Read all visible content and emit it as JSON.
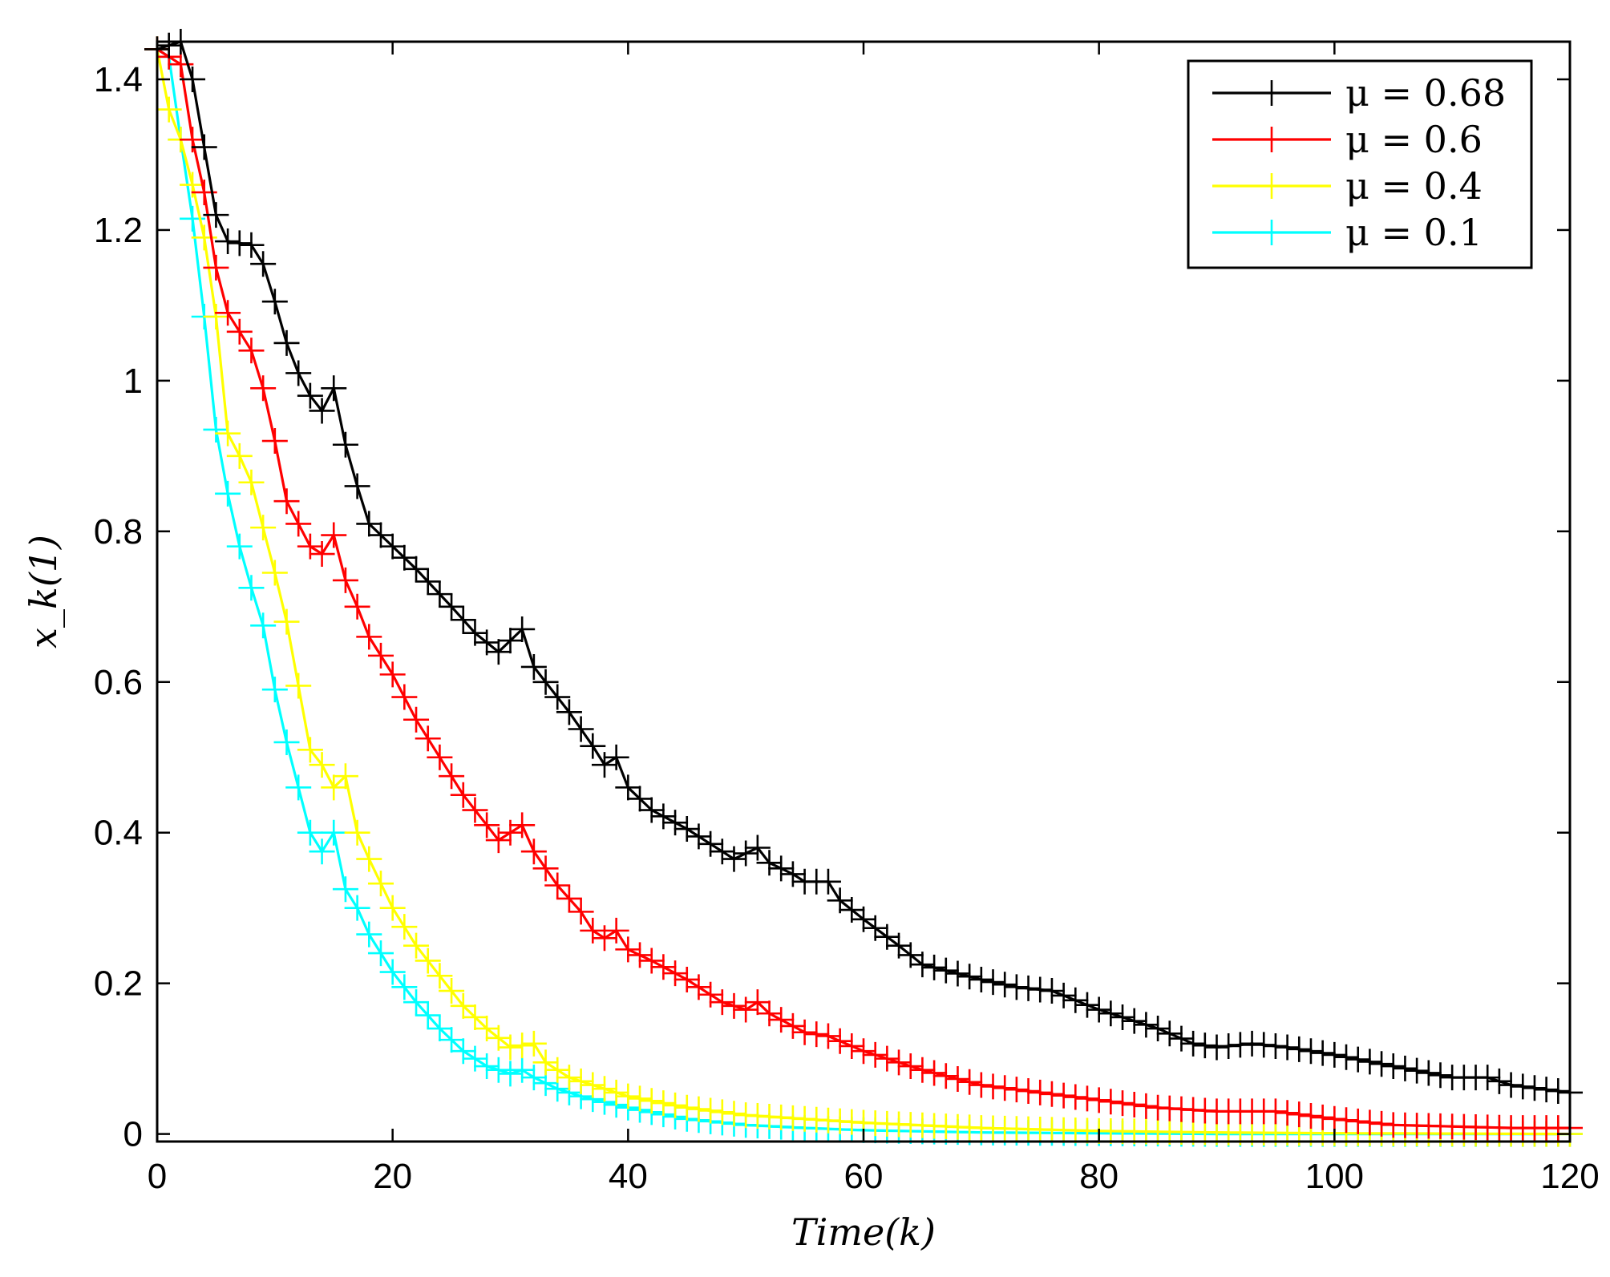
{
  "chart_data": {
    "type": "line",
    "title": "",
    "xlabel": "Time(k)",
    "ylabel": "x_k(1)",
    "xlim": [
      0,
      120
    ],
    "ylim": [
      -0.01,
      1.45
    ],
    "xticks": [
      0,
      20,
      40,
      60,
      80,
      100,
      120
    ],
    "xtick_labels": [
      "0",
      "20",
      "40",
      "60",
      "80",
      "100",
      "120"
    ],
    "yticks": [
      0,
      0.2,
      0.4,
      0.6,
      0.8,
      1,
      1.2,
      1.4
    ],
    "ytick_labels": [
      "0",
      "0.2",
      "0.4",
      "0.6",
      "0.8",
      "1",
      "1.2",
      "1.4"
    ],
    "grid": false,
    "legend_position": "top-right",
    "marker": "+",
    "key_points_note": "values at these k are linearly interpolated",
    "series": [
      {
        "name": "μ = 0.68",
        "color": "#000000",
        "key_points": [
          [
            0,
            1.44
          ],
          [
            2,
            1.45
          ],
          [
            3,
            1.4
          ],
          [
            4,
            1.31
          ],
          [
            5,
            1.22
          ],
          [
            6,
            1.185
          ],
          [
            8,
            1.18
          ],
          [
            9,
            1.155
          ],
          [
            10,
            1.105
          ],
          [
            11,
            1.05
          ],
          [
            12,
            1.01
          ],
          [
            13,
            0.98
          ],
          [
            14,
            0.96
          ],
          [
            15,
            0.99
          ],
          [
            16,
            0.915
          ],
          [
            17,
            0.86
          ],
          [
            18,
            0.81
          ],
          [
            20,
            0.78
          ],
          [
            22,
            0.75
          ],
          [
            25,
            0.7
          ],
          [
            27,
            0.665
          ],
          [
            29,
            0.64
          ],
          [
            31,
            0.67
          ],
          [
            32,
            0.62
          ],
          [
            35,
            0.56
          ],
          [
            37,
            0.515
          ],
          [
            38,
            0.49
          ],
          [
            39,
            0.5
          ],
          [
            40,
            0.46
          ],
          [
            42,
            0.43
          ],
          [
            45,
            0.405
          ],
          [
            48,
            0.375
          ],
          [
            49,
            0.365
          ],
          [
            51,
            0.38
          ],
          [
            52,
            0.36
          ],
          [
            54,
            0.345
          ],
          [
            55,
            0.335
          ],
          [
            57,
            0.335
          ],
          [
            58,
            0.31
          ],
          [
            60,
            0.285
          ],
          [
            63,
            0.25
          ],
          [
            65,
            0.225
          ],
          [
            70,
            0.205
          ],
          [
            73,
            0.195
          ],
          [
            76,
            0.19
          ],
          [
            80,
            0.165
          ],
          [
            85,
            0.14
          ],
          [
            88,
            0.12
          ],
          [
            90,
            0.115
          ],
          [
            93,
            0.12
          ],
          [
            96,
            0.115
          ],
          [
            100,
            0.105
          ],
          [
            105,
            0.09
          ],
          [
            110,
            0.075
          ],
          [
            113,
            0.075
          ],
          [
            115,
            0.065
          ],
          [
            120,
            0.055
          ]
        ]
      },
      {
        "name": "μ = 0.6",
        "color": "#ff0000",
        "key_points": [
          [
            0,
            1.44
          ],
          [
            2,
            1.42
          ],
          [
            3,
            1.32
          ],
          [
            4,
            1.25
          ],
          [
            5,
            1.15
          ],
          [
            6,
            1.09
          ],
          [
            7,
            1.065
          ],
          [
            8,
            1.04
          ],
          [
            9,
            0.99
          ],
          [
            10,
            0.92
          ],
          [
            11,
            0.84
          ],
          [
            12,
            0.81
          ],
          [
            13,
            0.78
          ],
          [
            14,
            0.77
          ],
          [
            15,
            0.795
          ],
          [
            16,
            0.735
          ],
          [
            17,
            0.7
          ],
          [
            18,
            0.66
          ],
          [
            20,
            0.61
          ],
          [
            22,
            0.55
          ],
          [
            24,
            0.5
          ],
          [
            26,
            0.45
          ],
          [
            28,
            0.41
          ],
          [
            29,
            0.39
          ],
          [
            31,
            0.41
          ],
          [
            32,
            0.375
          ],
          [
            34,
            0.33
          ],
          [
            36,
            0.295
          ],
          [
            37,
            0.27
          ],
          [
            38,
            0.26
          ],
          [
            39,
            0.27
          ],
          [
            40,
            0.245
          ],
          [
            42,
            0.23
          ],
          [
            45,
            0.205
          ],
          [
            48,
            0.175
          ],
          [
            50,
            0.165
          ],
          [
            51,
            0.175
          ],
          [
            52,
            0.16
          ],
          [
            55,
            0.135
          ],
          [
            57,
            0.13
          ],
          [
            60,
            0.11
          ],
          [
            65,
            0.085
          ],
          [
            70,
            0.065
          ],
          [
            75,
            0.055
          ],
          [
            80,
            0.045
          ],
          [
            85,
            0.035
          ],
          [
            90,
            0.03
          ],
          [
            95,
            0.03
          ],
          [
            100,
            0.02
          ],
          [
            105,
            0.012
          ],
          [
            110,
            0.01
          ],
          [
            115,
            0.008
          ],
          [
            120,
            0.008
          ]
        ]
      },
      {
        "name": "μ = 0.4",
        "color": "#ffff00",
        "key_points": [
          [
            0,
            1.44
          ],
          [
            1,
            1.36
          ],
          [
            2,
            1.32
          ],
          [
            3,
            1.26
          ],
          [
            4,
            1.19
          ],
          [
            5,
            1.085
          ],
          [
            6,
            0.93
          ],
          [
            7,
            0.9
          ],
          [
            8,
            0.865
          ],
          [
            9,
            0.805
          ],
          [
            10,
            0.745
          ],
          [
            11,
            0.68
          ],
          [
            12,
            0.595
          ],
          [
            13,
            0.51
          ],
          [
            14,
            0.49
          ],
          [
            15,
            0.46
          ],
          [
            16,
            0.475
          ],
          [
            17,
            0.4
          ],
          [
            18,
            0.365
          ],
          [
            20,
            0.3
          ],
          [
            22,
            0.25
          ],
          [
            24,
            0.21
          ],
          [
            26,
            0.17
          ],
          [
            28,
            0.14
          ],
          [
            30,
            0.115
          ],
          [
            32,
            0.12
          ],
          [
            33,
            0.095
          ],
          [
            35,
            0.075
          ],
          [
            40,
            0.05
          ],
          [
            45,
            0.035
          ],
          [
            50,
            0.025
          ],
          [
            55,
            0.02
          ],
          [
            60,
            0.015
          ],
          [
            70,
            0.008
          ],
          [
            80,
            0.004
          ],
          [
            90,
            0.002
          ],
          [
            100,
            0.001
          ],
          [
            110,
            0.0005
          ],
          [
            120,
            0.0
          ]
        ]
      },
      {
        "name": "μ = 0.1",
        "color": "#00ffff",
        "key_points": [
          [
            0,
            1.44
          ],
          [
            1,
            1.43
          ],
          [
            2,
            1.32
          ],
          [
            3,
            1.215
          ],
          [
            4,
            1.085
          ],
          [
            5,
            0.935
          ],
          [
            6,
            0.85
          ],
          [
            7,
            0.78
          ],
          [
            8,
            0.725
          ],
          [
            9,
            0.675
          ],
          [
            10,
            0.59
          ],
          [
            11,
            0.52
          ],
          [
            12,
            0.46
          ],
          [
            13,
            0.4
          ],
          [
            14,
            0.375
          ],
          [
            15,
            0.4
          ],
          [
            16,
            0.325
          ],
          [
            17,
            0.3
          ],
          [
            18,
            0.265
          ],
          [
            20,
            0.215
          ],
          [
            22,
            0.175
          ],
          [
            24,
            0.14
          ],
          [
            26,
            0.11
          ],
          [
            28,
            0.09
          ],
          [
            30,
            0.08
          ],
          [
            31,
            0.085
          ],
          [
            32,
            0.075
          ],
          [
            34,
            0.06
          ],
          [
            36,
            0.05
          ],
          [
            40,
            0.035
          ],
          [
            45,
            0.02
          ],
          [
            50,
            0.012
          ],
          [
            55,
            0.008
          ],
          [
            60,
            0.005
          ],
          [
            70,
            0.002
          ],
          [
            80,
            0.001
          ],
          [
            90,
            0.0
          ],
          [
            120,
            0.0
          ]
        ]
      }
    ]
  }
}
